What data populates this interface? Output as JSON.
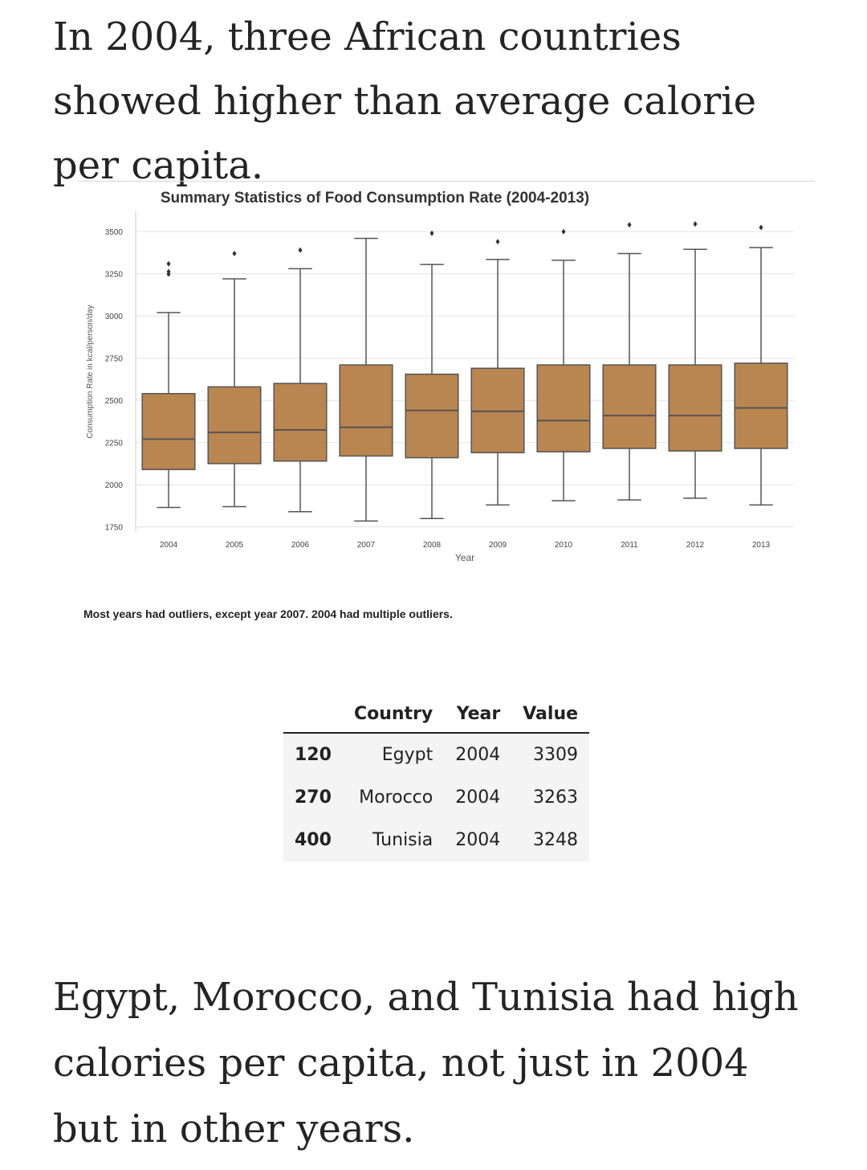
{
  "article": {
    "heading": "In 2004, three African countries showed higher than average calorie per capita.",
    "caption": "Most years had outliers, except year 2007. 2004 had multiple outliers.",
    "closing_paragraph": "Egypt, Morocco, and Tunisia had high calories per capita, not just in 2004 but in other years."
  },
  "table": {
    "headers": [
      "",
      "Country",
      "Year",
      "Value"
    ],
    "rows": [
      [
        "120",
        "Egypt",
        "2004",
        "3309"
      ],
      [
        "270",
        "Morocco",
        "2004",
        "3263"
      ],
      [
        "400",
        "Tunisia",
        "2004",
        "3248"
      ]
    ]
  },
  "colors": {
    "box_fill": "#b98550",
    "box_stroke": "#555555",
    "grid": "#e4e4e4",
    "text": "#242424"
  },
  "chart_data": {
    "type": "box",
    "title": "Summary Statistics of Food Consumption Rate (2004-2013)",
    "xlabel": "Year",
    "ylabel": "Consumption Rate in kcal/person/day",
    "ylim": [
      1720,
      3620
    ],
    "yticks": [
      1750,
      2000,
      2250,
      2500,
      2750,
      3000,
      3250,
      3500
    ],
    "grid": true,
    "categories": [
      "2004",
      "2005",
      "2006",
      "2007",
      "2008",
      "2009",
      "2010",
      "2011",
      "2012",
      "2013"
    ],
    "boxes": [
      {
        "year": "2004",
        "whisker_low": 1865,
        "q1": 2090,
        "median": 2270,
        "q3": 2540,
        "whisker_high": 3020,
        "outliers": [
          3248,
          3263,
          3309
        ]
      },
      {
        "year": "2005",
        "whisker_low": 1870,
        "q1": 2125,
        "median": 2310,
        "q3": 2580,
        "whisker_high": 3220,
        "outliers": [
          3370
        ]
      },
      {
        "year": "2006",
        "whisker_low": 1840,
        "q1": 2140,
        "median": 2325,
        "q3": 2600,
        "whisker_high": 3280,
        "outliers": [
          3390
        ]
      },
      {
        "year": "2007",
        "whisker_low": 1785,
        "q1": 2170,
        "median": 2340,
        "q3": 2710,
        "whisker_high": 3460,
        "outliers": []
      },
      {
        "year": "2008",
        "whisker_low": 1800,
        "q1": 2160,
        "median": 2440,
        "q3": 2655,
        "whisker_high": 3305,
        "outliers": [
          3490
        ]
      },
      {
        "year": "2009",
        "whisker_low": 1880,
        "q1": 2190,
        "median": 2435,
        "q3": 2690,
        "whisker_high": 3335,
        "outliers": [
          3440
        ]
      },
      {
        "year": "2010",
        "whisker_low": 1905,
        "q1": 2195,
        "median": 2380,
        "q3": 2710,
        "whisker_high": 3330,
        "outliers": [
          3500
        ]
      },
      {
        "year": "2011",
        "whisker_low": 1910,
        "q1": 2215,
        "median": 2410,
        "q3": 2710,
        "whisker_high": 3370,
        "outliers": [
          3540
        ]
      },
      {
        "year": "2012",
        "whisker_low": 1920,
        "q1": 2200,
        "median": 2410,
        "q3": 2710,
        "whisker_high": 3395,
        "outliers": [
          3545
        ]
      },
      {
        "year": "2013",
        "whisker_low": 1880,
        "q1": 2215,
        "median": 2455,
        "q3": 2720,
        "whisker_high": 3405,
        "outliers": [
          3525
        ]
      }
    ]
  }
}
